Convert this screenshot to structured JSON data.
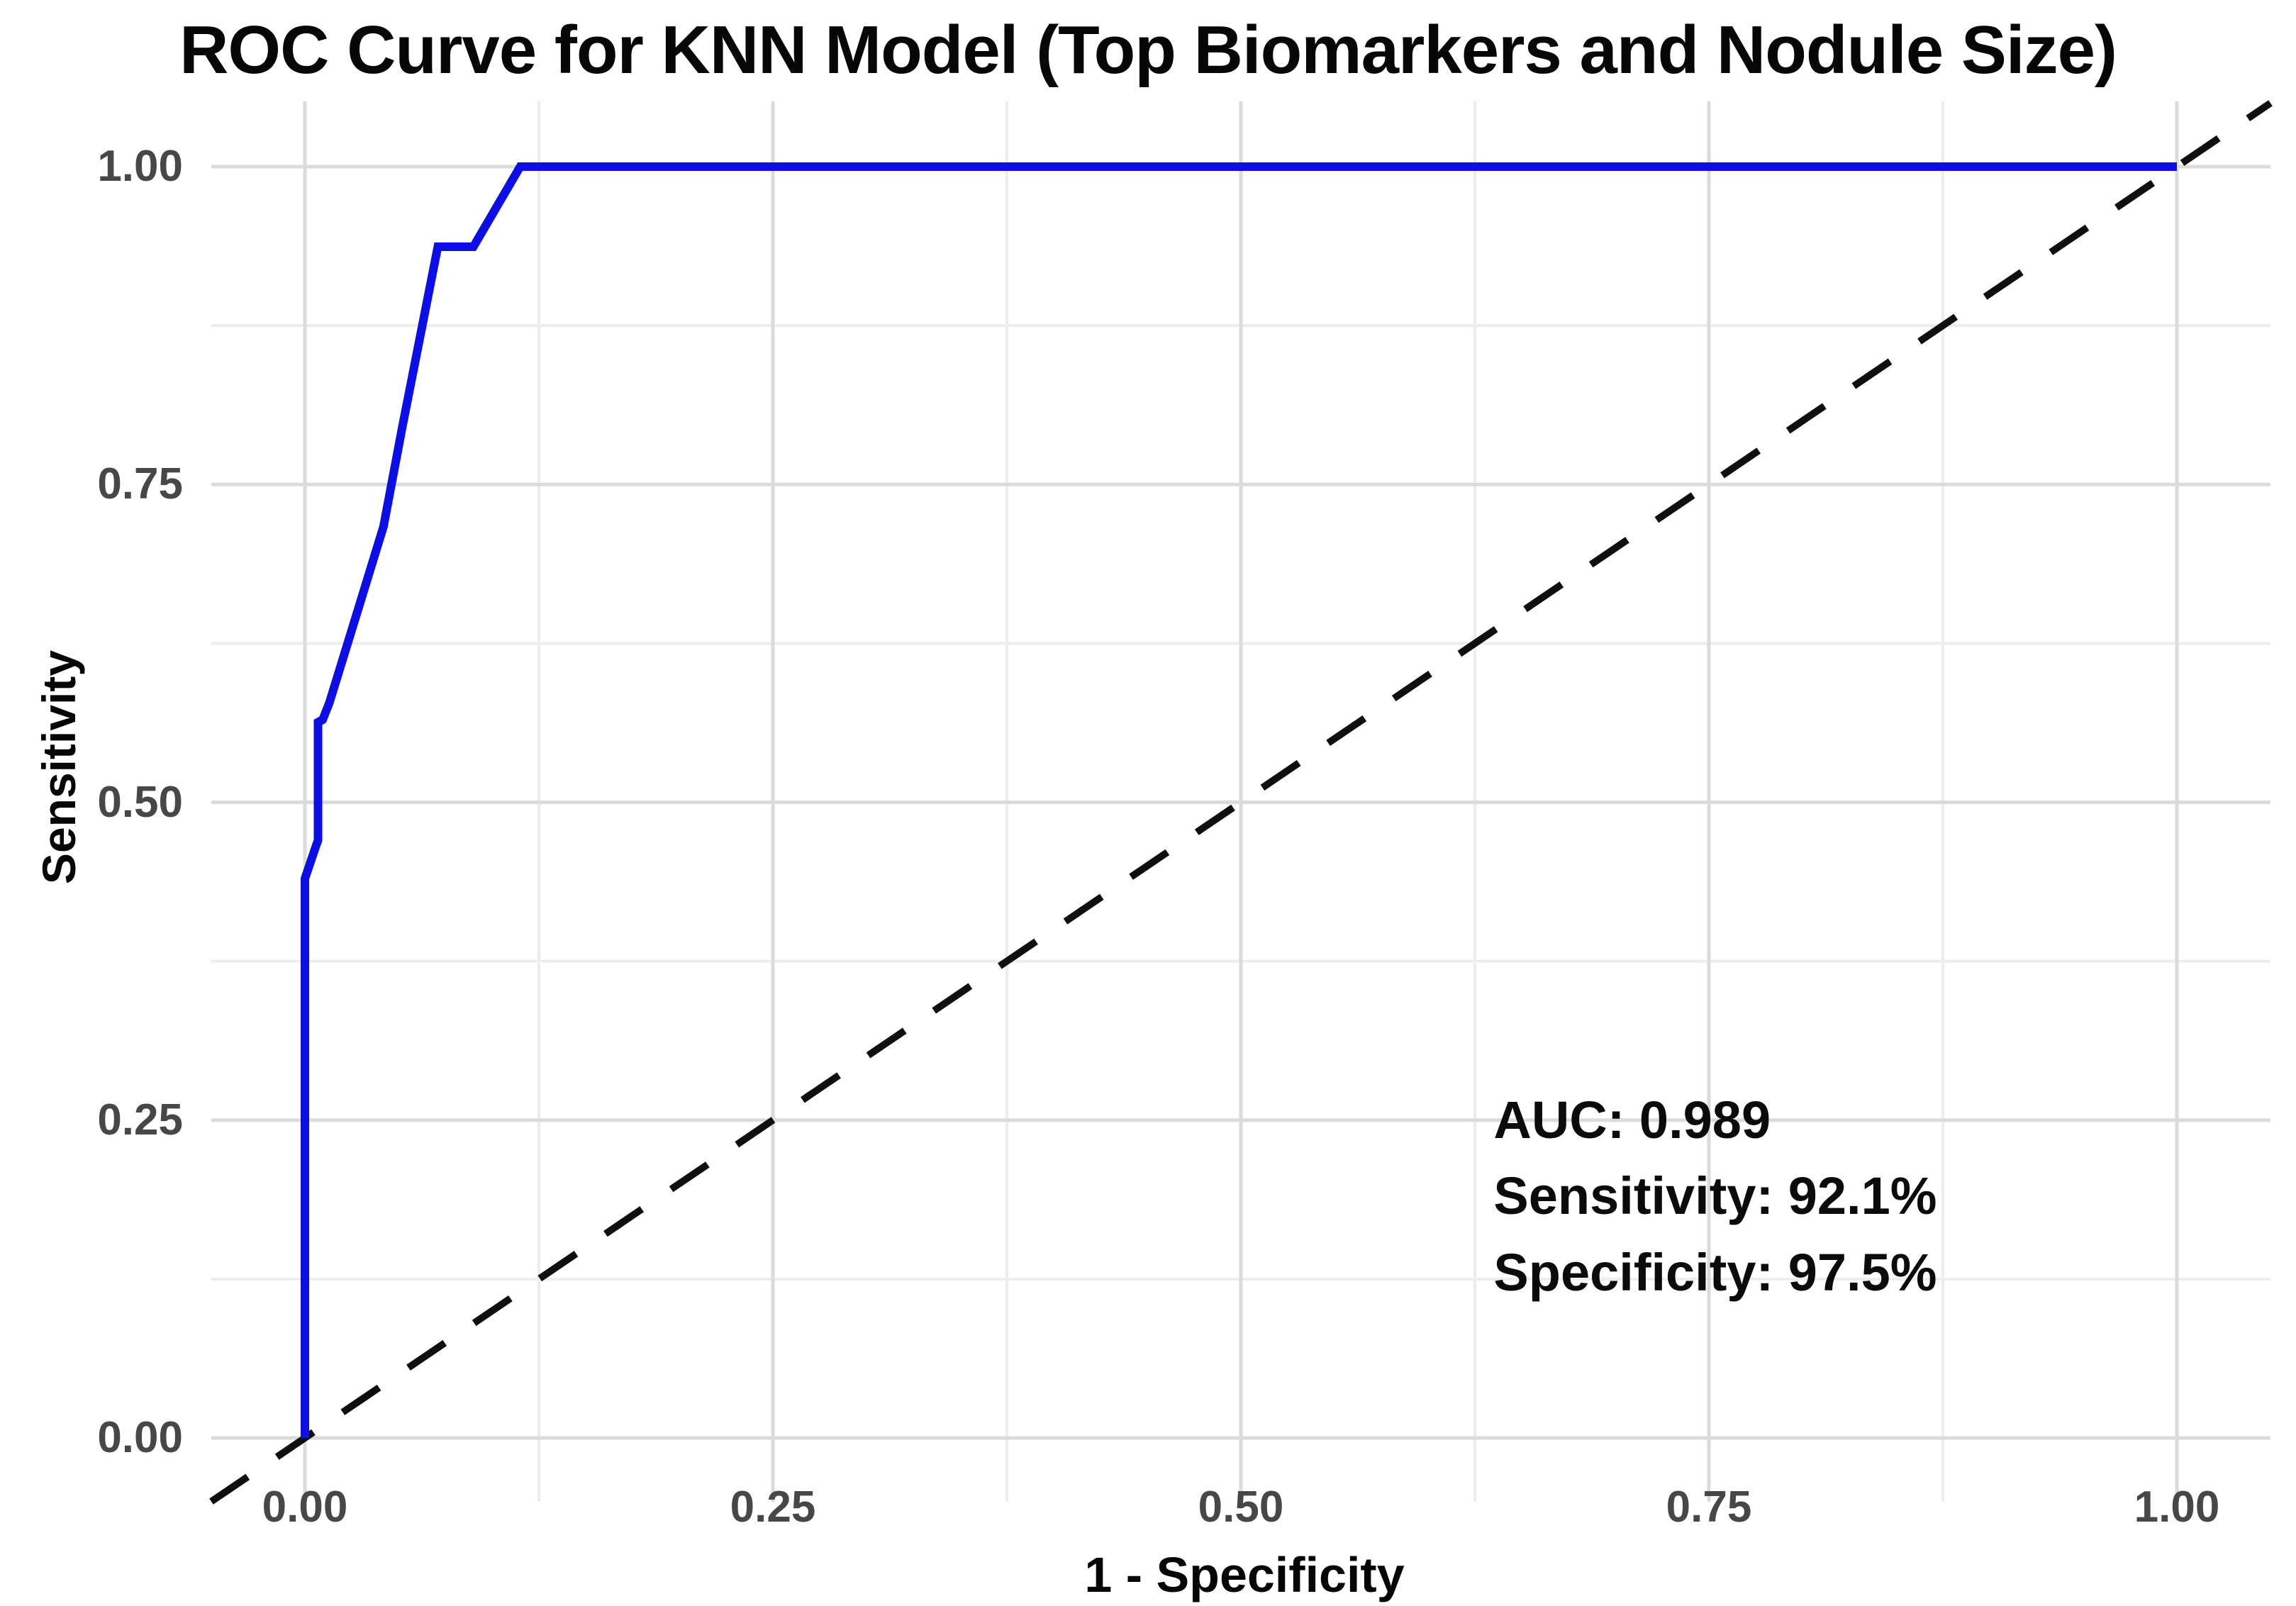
{
  "chart_data": {
    "type": "line",
    "title": "ROC Curve for KNN Model (Top Biomarkers and Nodule Size)",
    "xlabel": "1 - Specificity",
    "ylabel": "Sensitivity",
    "xlim": [
      -0.05,
      1.05
    ],
    "ylim": [
      -0.05,
      1.05
    ],
    "x_tick_values": [
      0,
      0.25,
      0.5,
      0.75,
      1
    ],
    "x_tick_labels": [
      "0.00",
      "0.25",
      "0.50",
      "0.75",
      "1.00"
    ],
    "y_tick_values": [
      0,
      0.25,
      0.5,
      0.75,
      1
    ],
    "y_tick_labels": [
      "0.00",
      "0.25",
      "0.50",
      "0.75",
      "1.00"
    ],
    "minor_grid_values": [
      0.125,
      0.375,
      0.625,
      0.875
    ],
    "grid": "major and minor light-gray gridlines on white background",
    "legend": "none",
    "series": [
      {
        "name": "ROC curve (KNN model)",
        "type": "line",
        "dash": "solid",
        "color": "#0d0de8",
        "stroke_width": 12,
        "points": [
          [
            0.0,
            0.0
          ],
          [
            0.0,
            0.44
          ],
          [
            0.006,
            0.466
          ],
          [
            0.007,
            0.47
          ],
          [
            0.007,
            0.563
          ],
          [
            0.0095,
            0.565
          ],
          [
            0.013,
            0.578
          ],
          [
            0.027,
            0.645
          ],
          [
            0.042,
            0.717
          ],
          [
            0.052,
            0.795
          ],
          [
            0.071,
            0.937
          ],
          [
            0.09,
            0.937
          ],
          [
            0.115,
            1.0
          ],
          [
            1.0,
            1.0
          ]
        ]
      },
      {
        "name": "Chance reference diagonal",
        "type": "line",
        "dash": "dashed",
        "color": "#0f0f0f",
        "stroke_width": 10,
        "points": [
          [
            -0.05,
            -0.05
          ],
          [
            1.05,
            1.05
          ]
        ]
      }
    ],
    "annotations": [
      {
        "text": "AUC: 0.989",
        "x": 0.635,
        "y": 0.25
      },
      {
        "text": "Sensitivity: 92.1%",
        "x": 0.635,
        "y": 0.19
      },
      {
        "text": "Specificity: 97.5%",
        "x": 0.635,
        "y": 0.13
      }
    ]
  },
  "metrics": {
    "auc": "0.989",
    "sensitivity": "92.1%",
    "specificity": "97.5%"
  },
  "colors": {
    "roc_curve": "#0d0de8",
    "diagonal": "#0f0f0f",
    "major_grid": "#dbdbdb",
    "minor_grid": "#ededed",
    "tick_text": "#474747",
    "title_text": "#070707",
    "background": "#ffffff"
  }
}
